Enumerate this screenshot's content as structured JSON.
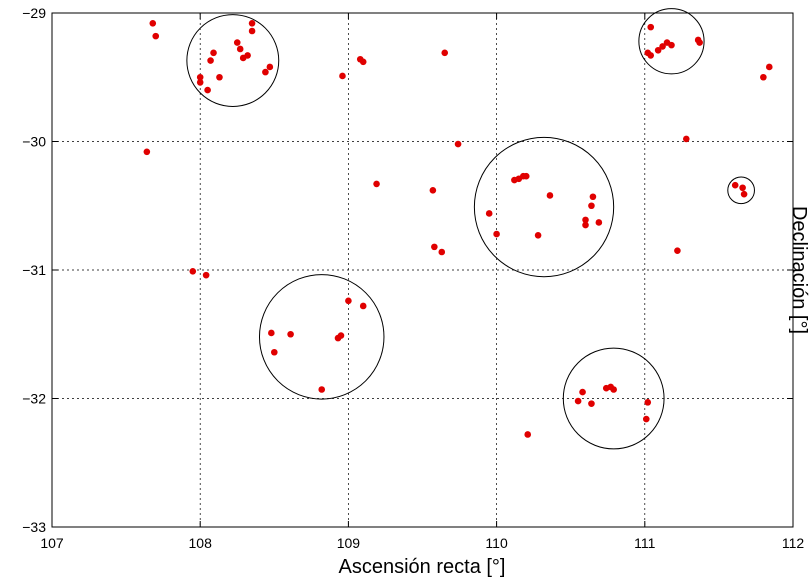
{
  "chart_data": {
    "type": "scatter",
    "xlabel": "Ascensión recta [°]",
    "ylabel": "Declinación [°]",
    "xlim": [
      107,
      112
    ],
    "ylim": [
      -33,
      -29
    ],
    "xticks": [
      107,
      108,
      109,
      110,
      111,
      112
    ],
    "yticks": [
      -29,
      -30,
      -31,
      -32,
      -33
    ],
    "xtick_labels": [
      "107",
      "108",
      "109",
      "110",
      "111",
      "112"
    ],
    "ytick_labels": [
      "−29",
      "−30",
      "−31",
      "−32",
      "−33"
    ],
    "grid": true,
    "marker_color": "#e00000",
    "points": [
      [
        107.68,
        -29.08
      ],
      [
        107.7,
        -29.18
      ],
      [
        107.64,
        -30.08
      ],
      [
        108.0,
        -29.5
      ],
      [
        108.0,
        -29.54
      ],
      [
        108.05,
        -29.6
      ],
      [
        108.07,
        -29.37
      ],
      [
        108.09,
        -29.31
      ],
      [
        108.13,
        -29.5
      ],
      [
        108.25,
        -29.23
      ],
      [
        108.27,
        -29.28
      ],
      [
        108.29,
        -29.35
      ],
      [
        108.32,
        -29.33
      ],
      [
        108.35,
        -29.14
      ],
      [
        108.35,
        -29.08
      ],
      [
        108.44,
        -29.46
      ],
      [
        108.47,
        -29.42
      ],
      [
        108.96,
        -29.49
      ],
      [
        109.08,
        -29.36
      ],
      [
        109.1,
        -29.38
      ],
      [
        109.65,
        -29.31
      ],
      [
        109.74,
        -30.02
      ],
      [
        109.19,
        -30.33
      ],
      [
        109.57,
        -30.38
      ],
      [
        107.95,
        -31.01
      ],
      [
        108.04,
        -31.04
      ],
      [
        108.48,
        -31.49
      ],
      [
        108.5,
        -31.64
      ],
      [
        108.61,
        -31.5
      ],
      [
        108.93,
        -31.53
      ],
      [
        108.95,
        -31.51
      ],
      [
        109.0,
        -31.24
      ],
      [
        109.1,
        -31.28
      ],
      [
        108.82,
        -31.93
      ],
      [
        109.58,
        -30.82
      ],
      [
        109.63,
        -30.86
      ],
      [
        109.95,
        -30.56
      ],
      [
        110.0,
        -30.72
      ],
      [
        110.12,
        -30.3
      ],
      [
        110.15,
        -30.29
      ],
      [
        110.18,
        -30.27
      ],
      [
        110.2,
        -30.27
      ],
      [
        110.28,
        -30.73
      ],
      [
        110.36,
        -30.42
      ],
      [
        110.6,
        -30.61
      ],
      [
        110.6,
        -30.65
      ],
      [
        110.64,
        -30.5
      ],
      [
        110.65,
        -30.43
      ],
      [
        110.69,
        -30.63
      ],
      [
        110.21,
        -32.28
      ],
      [
        110.55,
        -32.02
      ],
      [
        110.58,
        -31.95
      ],
      [
        110.64,
        -32.04
      ],
      [
        110.74,
        -31.92
      ],
      [
        110.77,
        -31.91
      ],
      [
        110.79,
        -31.93
      ],
      [
        111.01,
        -32.16
      ],
      [
        111.02,
        -32.03
      ],
      [
        111.02,
        -29.31
      ],
      [
        111.04,
        -29.33
      ],
      [
        111.04,
        -29.11
      ],
      [
        111.09,
        -29.29
      ],
      [
        111.12,
        -29.26
      ],
      [
        111.15,
        -29.23
      ],
      [
        111.18,
        -29.25
      ],
      [
        111.36,
        -29.21
      ],
      [
        111.37,
        -29.23
      ],
      [
        111.28,
        -29.98
      ],
      [
        111.22,
        -30.85
      ],
      [
        111.61,
        -30.34
      ],
      [
        111.66,
        -30.36
      ],
      [
        111.67,
        -30.41
      ],
      [
        111.8,
        -29.5
      ],
      [
        111.84,
        -29.42
      ]
    ],
    "circles": [
      {
        "x": 108.22,
        "y": -29.37,
        "r": 0.31
      },
      {
        "x": 111.18,
        "y": -29.22,
        "r": 0.22
      },
      {
        "x": 110.32,
        "y": -30.51,
        "r": 0.47
      },
      {
        "x": 111.65,
        "y": -30.38,
        "r": 0.09
      },
      {
        "x": 108.82,
        "y": -31.52,
        "r": 0.42
      },
      {
        "x": 110.79,
        "y": -32.0,
        "r": 0.34
      }
    ]
  }
}
